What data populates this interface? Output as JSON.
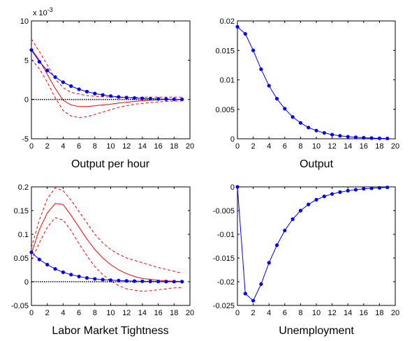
{
  "figure": {
    "colors": {
      "model": "#0000ff",
      "point_estimate": "#ff0000",
      "band": "#ff0000",
      "axis": "#000000",
      "zero_line": "#000000"
    }
  },
  "chart_data": [
    {
      "type": "line",
      "title": "Output per hour",
      "xlabel": "",
      "ylabel": "",
      "y_scale_label": "x 10",
      "y_scale_exponent": "-3",
      "xlim": [
        0,
        20
      ],
      "ylim": [
        -5,
        10
      ],
      "x_ticks": [
        0,
        2,
        4,
        6,
        8,
        10,
        12,
        14,
        16,
        18,
        20
      ],
      "y_ticks": [
        -5,
        0,
        5,
        10
      ],
      "y_tick_labels": [
        "-5",
        "0",
        "5",
        "10"
      ],
      "grid": false,
      "legend": "none",
      "zero_line": true,
      "x": [
        0,
        1,
        2,
        3,
        4,
        5,
        6,
        7,
        8,
        9,
        10,
        11,
        12,
        13,
        14,
        15,
        16,
        17,
        18,
        19
      ],
      "series": [
        {
          "role": "model",
          "style": "solid-markers",
          "values": [
            6.3,
            4.8,
            3.7,
            2.85,
            2.2,
            1.7,
            1.3,
            1.0,
            0.76,
            0.58,
            0.44,
            0.33,
            0.25,
            0.19,
            0.14,
            0.1,
            0.07,
            0.05,
            0.03,
            0.02
          ]
        },
        {
          "role": "point_estimate",
          "style": "solid",
          "values": [
            6.4,
            5.0,
            3.2,
            1.4,
            -0.1,
            -0.7,
            -0.9,
            -0.9,
            -0.8,
            -0.7,
            -0.6,
            -0.45,
            -0.35,
            -0.25,
            -0.15,
            -0.1,
            -0.05,
            0.0,
            0.0,
            0.0
          ]
        },
        {
          "role": "band_upper",
          "style": "dashed",
          "values": [
            7.7,
            6.1,
            4.4,
            2.6,
            1.5,
            0.9,
            0.7,
            0.5,
            0.4,
            0.35,
            0.3,
            0.25,
            0.25,
            0.25,
            0.3,
            0.3,
            0.3,
            0.3,
            0.3,
            0.3
          ]
        },
        {
          "role": "band_lower",
          "style": "dashed",
          "values": [
            5.1,
            3.9,
            2.2,
            0.2,
            -1.4,
            -2.1,
            -2.3,
            -2.2,
            -1.9,
            -1.6,
            -1.3,
            -1.0,
            -0.8,
            -0.6,
            -0.5,
            -0.4,
            -0.3,
            -0.25,
            -0.2,
            -0.2
          ]
        }
      ]
    },
    {
      "type": "line",
      "title": "Output",
      "xlabel": "",
      "ylabel": "",
      "xlim": [
        0,
        20
      ],
      "ylim": [
        0,
        0.02
      ],
      "x_ticks": [
        0,
        2,
        4,
        6,
        8,
        10,
        12,
        14,
        16,
        18,
        20
      ],
      "y_ticks": [
        0,
        0.005,
        0.01,
        0.015,
        0.02
      ],
      "y_tick_labels": [
        "0",
        "0.005",
        "0.01",
        "0.015",
        "0.02"
      ],
      "grid": false,
      "legend": "none",
      "zero_line": false,
      "x": [
        0,
        1,
        2,
        3,
        4,
        5,
        6,
        7,
        8,
        9,
        10,
        11,
        12,
        13,
        14,
        15,
        16,
        17,
        18,
        19
      ],
      "series": [
        {
          "role": "model",
          "style": "solid-markers",
          "values": [
            0.019,
            0.0178,
            0.015,
            0.0118,
            0.009,
            0.0068,
            0.0051,
            0.0037,
            0.0027,
            0.0019,
            0.0014,
            0.001,
            0.0007,
            0.0005,
            0.00035,
            0.00025,
            0.00018,
            0.00012,
            8e-05,
            5e-05
          ]
        }
      ]
    },
    {
      "type": "line",
      "title": "Labor Market Tightness",
      "xlabel": "",
      "ylabel": "",
      "xlim": [
        0,
        20
      ],
      "ylim": [
        -0.05,
        0.2
      ],
      "x_ticks": [
        0,
        2,
        4,
        6,
        8,
        10,
        12,
        14,
        16,
        18,
        20
      ],
      "y_ticks": [
        -0.05,
        0,
        0.05,
        0.1,
        0.15,
        0.2
      ],
      "y_tick_labels": [
        "-0.05",
        "0",
        "0.05",
        "0.1",
        "0.15",
        "0.2"
      ],
      "grid": false,
      "legend": "none",
      "zero_line": true,
      "x": [
        0,
        1,
        2,
        3,
        4,
        5,
        6,
        7,
        8,
        9,
        10,
        11,
        12,
        13,
        14,
        15,
        16,
        17,
        18,
        19
      ],
      "series": [
        {
          "role": "model",
          "style": "solid-markers",
          "values": [
            0.062,
            0.047,
            0.036,
            0.027,
            0.02,
            0.015,
            0.011,
            0.008,
            0.006,
            0.0045,
            0.0033,
            0.0025,
            0.0018,
            0.0013,
            0.001,
            0.0007,
            0.0005,
            0.0004,
            0.0003,
            0.0002
          ]
        },
        {
          "role": "point_estimate",
          "style": "solid",
          "values": [
            0.06,
            0.11,
            0.145,
            0.165,
            0.163,
            0.14,
            0.115,
            0.09,
            0.068,
            0.05,
            0.036,
            0.025,
            0.017,
            0.011,
            0.007,
            0.005,
            0.003,
            0.002,
            0.001,
            0.001
          ]
        },
        {
          "role": "band_upper",
          "style": "dashed",
          "values": [
            0.072,
            0.13,
            0.175,
            0.198,
            0.192,
            0.172,
            0.148,
            0.124,
            0.1,
            0.082,
            0.068,
            0.058,
            0.05,
            0.045,
            0.04,
            0.035,
            0.03,
            0.026,
            0.022,
            0.018
          ]
        },
        {
          "role": "band_lower",
          "style": "dashed",
          "values": [
            0.045,
            0.082,
            0.115,
            0.135,
            0.13,
            0.108,
            0.08,
            0.055,
            0.032,
            0.015,
            0.002,
            -0.008,
            -0.015,
            -0.018,
            -0.02,
            -0.019,
            -0.017,
            -0.015,
            -0.013,
            -0.012
          ]
        }
      ]
    },
    {
      "type": "line",
      "title": "Unemployment",
      "xlabel": "",
      "ylabel": "",
      "xlim": [
        0,
        20
      ],
      "ylim": [
        -0.025,
        0
      ],
      "x_ticks": [
        0,
        2,
        4,
        6,
        8,
        10,
        12,
        14,
        16,
        18,
        20
      ],
      "y_ticks": [
        -0.025,
        -0.02,
        -0.015,
        -0.01,
        -0.005,
        0
      ],
      "y_tick_labels": [
        "-0.025",
        "-0.02",
        "-0.015",
        "-0.01",
        "-0.005",
        "0"
      ],
      "grid": false,
      "legend": "none",
      "zero_line": false,
      "x": [
        0,
        1,
        2,
        3,
        4,
        5,
        6,
        7,
        8,
        9,
        10,
        11,
        12,
        13,
        14,
        15,
        16,
        17,
        18,
        19
      ],
      "series": [
        {
          "role": "model",
          "style": "solid-markers",
          "values": [
            0,
            -0.0225,
            -0.024,
            -0.0205,
            -0.016,
            -0.0123,
            -0.0092,
            -0.0068,
            -0.005,
            -0.0037,
            -0.0027,
            -0.002,
            -0.0015,
            -0.0011,
            -0.0008,
            -0.0006,
            -0.0004,
            -0.0003,
            -0.0002,
            -0.0001
          ]
        }
      ]
    }
  ]
}
